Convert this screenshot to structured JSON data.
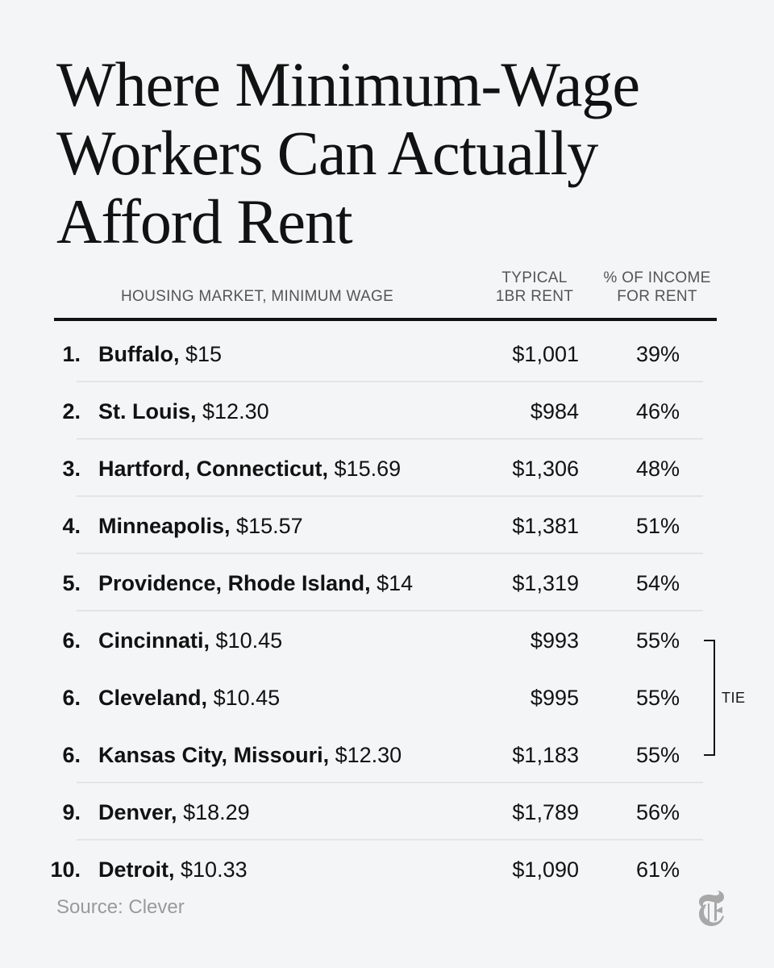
{
  "title_lines": [
    "Where Minimum-Wage",
    "Workers Can Actually",
    "Afford Rent"
  ],
  "columns": {
    "market": "HOUSING MARKET, MINIMUM WAGE",
    "rent": [
      "TYPICAL",
      "1BR RENT"
    ],
    "pct": [
      "% OF INCOME",
      "FOR RENT"
    ]
  },
  "rows": [
    {
      "rank": "1.",
      "city": "Buffalo,",
      "wage": "$15",
      "rent": "$1,001",
      "pct": "39%"
    },
    {
      "rank": "2.",
      "city": "St. Louis,",
      "wage": "$12.30",
      "rent": "$984",
      "pct": "46%"
    },
    {
      "rank": "3.",
      "city": "Hartford, Connecticut,",
      "wage": "$15.69",
      "rent": "$1,306",
      "pct": "48%"
    },
    {
      "rank": "4.",
      "city": "Minneapolis,",
      "wage": "$15.57",
      "rent": "$1,381",
      "pct": "51%"
    },
    {
      "rank": "5.",
      "city": "Providence, Rhode Island,",
      "wage": "$14",
      "rent": "$1,319",
      "pct": "54%"
    },
    {
      "rank": "6.",
      "city": "Cincinnati,",
      "wage": "$10.45",
      "rent": "$993",
      "pct": "55%"
    },
    {
      "rank": "6.",
      "city": "Cleveland,",
      "wage": "$10.45",
      "rent": "$995",
      "pct": "55%"
    },
    {
      "rank": "6.",
      "city": "Kansas City, Missouri,",
      "wage": "$12.30",
      "rent": "$1,183",
      "pct": "55%"
    },
    {
      "rank": "9.",
      "city": "Denver,",
      "wage": "$18.29",
      "rent": "$1,789",
      "pct": "56%"
    },
    {
      "rank": "10.",
      "city": "Detroit,",
      "wage": "$10.33",
      "rent": "$1,090",
      "pct": "61%"
    }
  ],
  "tie_label": "TIE",
  "source": "Source: Clever",
  "logo_icon": "nyt-t-logo-icon",
  "colors": {
    "background": "#f4f5f7",
    "text": "#121212",
    "muted": "#9a9a9a",
    "divider": "#e3e4e6"
  }
}
